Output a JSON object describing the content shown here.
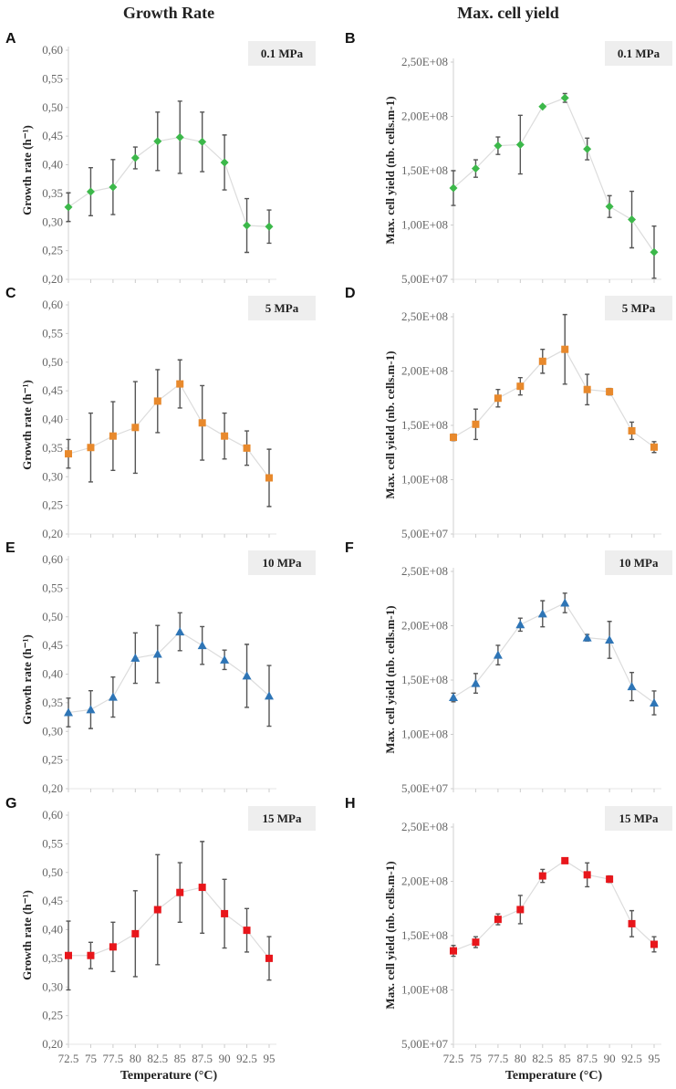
{
  "column_titles": [
    "Growth Rate",
    "Max. cell yield"
  ],
  "chart_data": [
    {
      "panel": "A",
      "type": "scatter",
      "pressure": "0.1 MPa",
      "ylabel": "Growth rate (h⁻¹)",
      "xlabel": "Temperature (°C)",
      "marker": "diamond",
      "color": "#3cb84a",
      "x": [
        72.5,
        75,
        77.5,
        80,
        82.5,
        85,
        87.5,
        90,
        92.5,
        95
      ],
      "y": [
        0.326,
        0.353,
        0.361,
        0.412,
        0.441,
        0.448,
        0.44,
        0.404,
        0.294,
        0.292
      ],
      "err": [
        0.025,
        0.042,
        0.048,
        0.019,
        0.051,
        0.063,
        0.052,
        0.048,
        0.047,
        0.029
      ],
      "ylim": [
        0.2,
        0.6
      ],
      "yticks": [
        "0,20",
        "0,25",
        "0,30",
        "0,35",
        "0,40",
        "0,45",
        "0,50",
        "0,55",
        "0,60"
      ]
    },
    {
      "panel": "B",
      "type": "scatter",
      "pressure": "0.1 MPa",
      "ylabel": "Max. cell yield (nb. cells.m-1)",
      "xlabel": "Temperature (°C)",
      "marker": "diamond",
      "color": "#3cb84a",
      "x": [
        72.5,
        75,
        77.5,
        80,
        82.5,
        85,
        87.5,
        90,
        92.5,
        95
      ],
      "y": [
        134000000.0,
        152000000.0,
        173000000.0,
        174000000.0,
        209000000.0,
        217000000.0,
        170000000.0,
        117000000.0,
        105000000.0,
        75000000.0
      ],
      "err": [
        16000000.0,
        8000000.0,
        8000000.0,
        27000000.0,
        1000000.0,
        4000000.0,
        10000000.0,
        10000000.0,
        26000000.0,
        24000000.0
      ],
      "ylim": [
        50000000.0,
        250000000.0
      ],
      "yticks": [
        "5,00E+07",
        "1,00E+08",
        "1,50E+08",
        "2,00E+08",
        "2,50E+08"
      ]
    },
    {
      "panel": "C",
      "type": "scatter",
      "pressure": "5 MPa",
      "ylabel": "Growth rate (h⁻¹)",
      "xlabel": "Temperature (°C)",
      "marker": "square",
      "color": "#e8892c",
      "x": [
        72.5,
        75,
        77.5,
        80,
        82.5,
        85,
        87.5,
        90,
        92.5,
        95
      ],
      "y": [
        0.34,
        0.351,
        0.371,
        0.386,
        0.432,
        0.462,
        0.394,
        0.371,
        0.35,
        0.298
      ],
      "err": [
        0.025,
        0.06,
        0.06,
        0.08,
        0.055,
        0.042,
        0.065,
        0.04,
        0.03,
        0.05
      ],
      "ylim": [
        0.2,
        0.6
      ],
      "yticks": [
        "0,20",
        "0,25",
        "0,30",
        "0,35",
        "0,40",
        "0,45",
        "0,50",
        "0,55",
        "0,60"
      ]
    },
    {
      "panel": "D",
      "type": "scatter",
      "pressure": "5 MPa",
      "ylabel": "Max. cell yield (nb. cells.m-1)",
      "xlabel": "Temperature (°C)",
      "marker": "square",
      "color": "#e8892c",
      "x": [
        72.5,
        75,
        77.5,
        80,
        82.5,
        85,
        87.5,
        90,
        92.5,
        95
      ],
      "y": [
        139000000.0,
        151000000.0,
        175000000.0,
        186000000.0,
        209000000.0,
        220000000.0,
        183000000.0,
        181000000.0,
        145000000.0,
        130000000.0
      ],
      "err": [
        3000000.0,
        14000000.0,
        8000000.0,
        8000000.0,
        11000000.0,
        32000000.0,
        14000000.0,
        3000000.0,
        8000000.0,
        5000000.0
      ],
      "ylim": [
        50000000.0,
        250000000.0
      ],
      "yticks": [
        "5,00E+07",
        "1,00E+08",
        "1,50E+08",
        "2,00E+08",
        "2,50E+08"
      ]
    },
    {
      "panel": "E",
      "type": "scatter",
      "pressure": "10 MPa",
      "ylabel": "Growth rate (h⁻¹)",
      "xlabel": "Temperature (°C)",
      "marker": "triangle",
      "color": "#2e75b6",
      "x": [
        72.5,
        75,
        77.5,
        80,
        82.5,
        85,
        87.5,
        90,
        92.5,
        95
      ],
      "y": [
        0.333,
        0.338,
        0.36,
        0.428,
        0.435,
        0.474,
        0.45,
        0.425,
        0.397,
        0.362
      ],
      "err": [
        0.025,
        0.033,
        0.035,
        0.044,
        0.05,
        0.033,
        0.033,
        0.017,
        0.055,
        0.053
      ],
      "ylim": [
        0.2,
        0.6
      ],
      "yticks": [
        "0,20",
        "0,25",
        "0,30",
        "0,35",
        "0,40",
        "0,45",
        "0,50",
        "0,55",
        "0,60"
      ]
    },
    {
      "panel": "F",
      "type": "scatter",
      "pressure": "10 MPa",
      "ylabel": "Max. cell yield (nb. cells.m-1)",
      "xlabel": "Temperature (°C)",
      "marker": "triangle",
      "color": "#2e75b6",
      "x": [
        72.5,
        75,
        77.5,
        80,
        82.5,
        85,
        87.5,
        90,
        92.5,
        95
      ],
      "y": [
        134000000.0,
        147000000.0,
        173000000.0,
        201000000.0,
        211000000.0,
        221000000.0,
        189000000.0,
        187000000.0,
        144000000.0,
        129000000.0
      ],
      "err": [
        4000000.0,
        9000000.0,
        9000000.0,
        6000000.0,
        12000000.0,
        9000000.0,
        3000000.0,
        17000000.0,
        13000000.0,
        11000000.0
      ],
      "ylim": [
        50000000.0,
        250000000.0
      ],
      "yticks": [
        "5,00E+07",
        "1,00E+08",
        "1,50E+08",
        "2,00E+08",
        "2,50E+08"
      ]
    },
    {
      "panel": "G",
      "type": "scatter",
      "pressure": "15 MPa",
      "ylabel": "Growth rate (h⁻¹)",
      "xlabel": "Temperature (°C)",
      "marker": "square",
      "color": "#e8161b",
      "x": [
        72.5,
        75,
        77.5,
        80,
        82.5,
        85,
        87.5,
        90,
        92.5,
        95
      ],
      "y": [
        0.355,
        0.355,
        0.37,
        0.393,
        0.435,
        0.465,
        0.474,
        0.428,
        0.399,
        0.35
      ],
      "err": [
        0.06,
        0.023,
        0.043,
        0.075,
        0.096,
        0.052,
        0.08,
        0.06,
        0.038,
        0.038
      ],
      "ylim": [
        0.2,
        0.6
      ],
      "yticks": [
        "0,20",
        "0,25",
        "0,30",
        "0,35",
        "0,40",
        "0,45",
        "0,50",
        "0,55",
        "0,60"
      ],
      "xticks": [
        "72.5",
        "75",
        "77.5",
        "80",
        "82.5",
        "85",
        "87.5",
        "90",
        "92.5",
        "95"
      ]
    },
    {
      "panel": "H",
      "type": "scatter",
      "pressure": "15 MPa",
      "ylabel": "Max. cell yield (nb. cells.m-1)",
      "xlabel": "Temperature (°C)",
      "marker": "square",
      "color": "#e8161b",
      "x": [
        72.5,
        75,
        77.5,
        80,
        82.5,
        85,
        87.5,
        90,
        92.5,
        95
      ],
      "y": [
        136000000.0,
        144000000.0,
        165000000.0,
        174000000.0,
        205000000.0,
        219000000.0,
        206000000.0,
        202000000.0,
        161000000.0,
        142000000.0
      ],
      "err": [
        5000000.0,
        5000000.0,
        5000000.0,
        13000000.0,
        6000000.0,
        2000000.0,
        11000000.0,
        3000000.0,
        12000000.0,
        7000000.0
      ],
      "ylim": [
        50000000.0,
        250000000.0
      ],
      "yticks": [
        "5,00E+07",
        "1,00E+08",
        "1,50E+08",
        "2,00E+08",
        "2,50E+08"
      ],
      "xticks": [
        "72.5",
        "75",
        "77.5",
        "80",
        "82.5",
        "85",
        "87.5",
        "90",
        "92.5",
        "95"
      ]
    }
  ]
}
